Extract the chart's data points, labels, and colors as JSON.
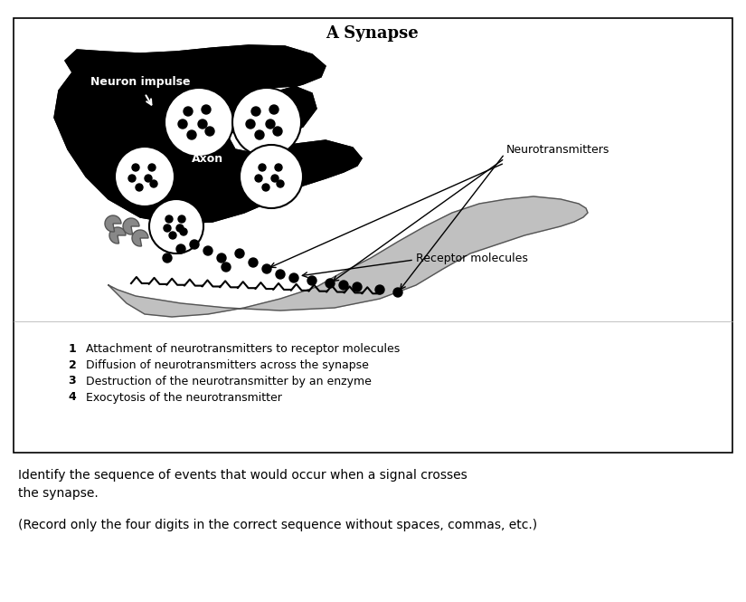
{
  "title": "A Synapse",
  "neuron_impulse_label": "Neuron impulse",
  "axon_label": "Axon",
  "neurotransmitters_label": "Neurotransmitters",
  "receptor_molecules_label": "Receptor molecules",
  "legend_items": [
    {
      "number": "1",
      "text": "Attachment of neurotransmitters to receptor molecules"
    },
    {
      "number": "2",
      "text": "Diffusion of neurotransmitters across the synapse"
    },
    {
      "number": "3",
      "text": "Destruction of the neurotransmitter by an enzyme"
    },
    {
      "number": "4",
      "text": "Exocytosis of the neurotransmitter"
    }
  ],
  "question_line1": "Identify the sequence of events that would occur when a signal crosses",
  "question_line2": "the synapse.",
  "record_note": "(Record only the four digits in the correct sequence without spaces, commas, etc.)",
  "bg_color": "#ffffff",
  "neuron_color": "#000000",
  "receptor_color": "#c8c8c8",
  "box_linecolor": "#000000"
}
